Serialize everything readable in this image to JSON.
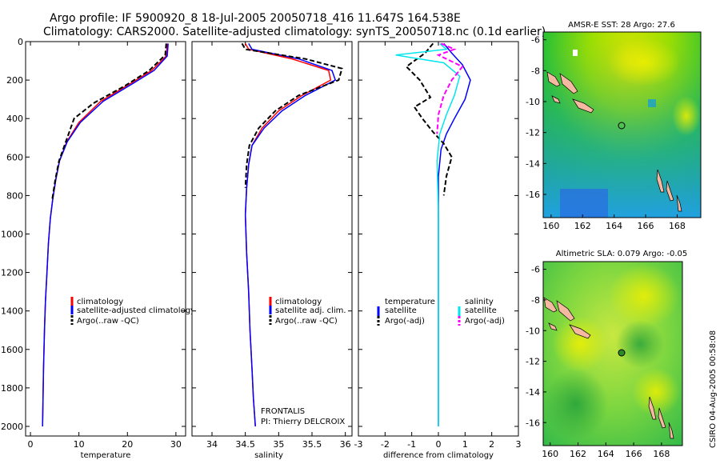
{
  "header": {
    "line1": "Argo profile: IF 5900920_8 18-Jul-2005 20050718_416 11.647S 164.538E",
    "line2": "Climatology: CARS2000. Satellite-adjusted climatology: synTS_20050718.nc (0.1d earlier)"
  },
  "credit": "CSIRO 04-Aug-2005 00:58:08",
  "colors": {
    "climatology": "#ff0000",
    "satellite": "#0000ff",
    "argo": "#000000",
    "salinity_satellite": "#00e5ee",
    "salinity_argo": "#ff00ff"
  },
  "chart_data": [
    {
      "type": "line",
      "xlabel": "temperature",
      "xlim": [
        -1,
        32
      ],
      "ylim": [
        0,
        2050
      ],
      "y_inverted": true,
      "xticks": [
        "0",
        "10",
        "20",
        "30"
      ],
      "yticks": [
        "0",
        "200",
        "400",
        "600",
        "800",
        "1000",
        "1200",
        "1400",
        "1600",
        "1800",
        "2000"
      ],
      "legend": [
        "climatology",
        "satellite-adjusted climatology",
        "Argo(..raw -QC)"
      ],
      "series": [
        {
          "name": "climatology",
          "style": "solid",
          "x": [
            28.2,
            28.0,
            25.0,
            20.5,
            14.5,
            10.0,
            7.5,
            6.0,
            5.2,
            4.6,
            4.1,
            3.7,
            3.4,
            3.1,
            2.9,
            2.7,
            2.6,
            2.5
          ],
          "y": [
            10,
            75,
            150,
            220,
            310,
            420,
            520,
            620,
            720,
            820,
            920,
            1050,
            1200,
            1350,
            1500,
            1700,
            1850,
            2000
          ]
        },
        {
          "name": "satellite-adjusted climatology",
          "style": "solid",
          "x": [
            28.4,
            28.2,
            25.5,
            21.0,
            15.0,
            10.3,
            7.6,
            6.0,
            5.2,
            4.6,
            4.1,
            3.7,
            3.4,
            3.1,
            2.9,
            2.7,
            2.6,
            2.5
          ],
          "y": [
            10,
            75,
            150,
            220,
            310,
            420,
            520,
            620,
            720,
            820,
            920,
            1050,
            1200,
            1350,
            1500,
            1700,
            1850,
            2000
          ]
        },
        {
          "name": "Argo(..raw -QC)",
          "style": "dashed",
          "x": [
            28.0,
            27.8,
            24.5,
            19.5,
            13.0,
            9.0,
            7.3,
            5.9,
            5.1,
            4.5
          ],
          "y": [
            10,
            70,
            150,
            230,
            320,
            400,
            520,
            620,
            720,
            820
          ]
        }
      ]
    },
    {
      "type": "line",
      "xlabel": "salinity",
      "xlim": [
        33.7,
        36.1
      ],
      "ylim": [
        0,
        2050
      ],
      "y_inverted": true,
      "xticks": [
        "34",
        "34.5",
        "35",
        "35.5",
        "36"
      ],
      "legend": [
        "climatology",
        "satellite adj. clim.",
        "Argo(..raw -QC)"
      ],
      "annotations": [
        "FRONTALIS",
        "PI: Thierry DELCROIX"
      ],
      "series": [
        {
          "name": "climatology",
          "style": "solid",
          "x": [
            34.5,
            34.55,
            35.2,
            35.75,
            35.78,
            35.35,
            35.0,
            34.75,
            34.6,
            34.55,
            34.52,
            34.5,
            34.52,
            34.55,
            34.57,
            34.6,
            34.62,
            34.65
          ],
          "y": [
            10,
            40,
            90,
            150,
            200,
            280,
            360,
            450,
            540,
            640,
            760,
            900,
            1100,
            1300,
            1500,
            1700,
            1850,
            2000
          ]
        },
        {
          "name": "satellite adj. clim.",
          "style": "solid",
          "x": [
            34.55,
            34.6,
            35.3,
            35.8,
            35.85,
            35.4,
            35.05,
            34.78,
            34.6,
            34.55,
            34.52,
            34.5,
            34.52,
            34.55,
            34.57,
            34.6,
            34.62,
            34.65
          ],
          "y": [
            10,
            40,
            90,
            150,
            200,
            280,
            360,
            450,
            540,
            640,
            760,
            900,
            1100,
            1300,
            1500,
            1700,
            1850,
            2000
          ]
        },
        {
          "name": "Argo(..raw -QC)",
          "style": "dashed",
          "x": [
            34.45,
            34.5,
            35.4,
            35.95,
            35.9,
            35.3,
            34.95,
            34.7,
            34.56,
            34.52,
            34.5
          ],
          "y": [
            10,
            40,
            90,
            140,
            200,
            280,
            360,
            450,
            540,
            640,
            760
          ]
        }
      ]
    },
    {
      "type": "line",
      "xlabel": "difference from climatology",
      "xlim": [
        -3,
        3
      ],
      "ylim": [
        0,
        2050
      ],
      "y_inverted": true,
      "xticks": [
        "-3",
        "-2",
        "-1",
        "0",
        "1",
        "2",
        "3"
      ],
      "legend": [
        "temperature",
        "satellite",
        "Argo(-adj)",
        "salinity",
        "satellite",
        "Argo(-adj)"
      ],
      "series": [
        {
          "name": "satellite",
          "style": "solid",
          "x": [
            0.2,
            0.5,
            0.9,
            1.2,
            1.0,
            0.6,
            0.3,
            0.1,
            0.0,
            0.0,
            0.0,
            0.0
          ],
          "y": [
            10,
            60,
            120,
            200,
            300,
            400,
            480,
            560,
            700,
            1000,
            1500,
            2000
          ]
        },
        {
          "name": "Argo(-adj)",
          "style": "dashed",
          "x": [
            -0.2,
            -0.5,
            -1.2,
            -0.7,
            -0.3,
            -0.9,
            -0.6,
            -0.2,
            0.2,
            0.5,
            0.3,
            0.2
          ],
          "y": [
            10,
            60,
            130,
            200,
            290,
            340,
            400,
            470,
            530,
            600,
            700,
            800
          ]
        },
        {
          "name": "satellite",
          "style": "solid",
          "x": [
            0.05,
            0.3,
            -1.6,
            0.2,
            0.8,
            0.6,
            0.3,
            0.05,
            -0.05,
            0.0,
            0.0,
            0.0
          ],
          "y": [
            10,
            40,
            70,
            110,
            180,
            280,
            380,
            480,
            620,
            900,
            1500,
            2000
          ]
        },
        {
          "name": "Argo(-adj)",
          "style": "dashed",
          "x": [
            0.1,
            0.6,
            0.0,
            0.9,
            0.5,
            0.2,
            0.0,
            -0.05
          ],
          "y": [
            10,
            40,
            70,
            130,
            200,
            280,
            380,
            480
          ]
        }
      ]
    },
    {
      "type": "heatmap",
      "title": "AMSR-E SST: 28 Argo: 27.6",
      "xlim": [
        159.5,
        169.5
      ],
      "ylim": [
        -17.5,
        -5.5
      ],
      "xticks": [
        "160",
        "162",
        "164",
        "166",
        "168"
      ],
      "yticks": [
        "-6",
        "-8",
        "-10",
        "-12",
        "-14",
        "-16"
      ],
      "argo_position": {
        "lon": 164.538,
        "lat": -11.647
      }
    },
    {
      "type": "heatmap",
      "title": "Altimetric SLA: 0.079 Argo: -0.05",
      "xlim": [
        159.5,
        169.5
      ],
      "ylim": [
        -17.5,
        -5.5
      ],
      "xticks": [
        "160",
        "162",
        "164",
        "166",
        "168"
      ],
      "yticks": [
        "-6",
        "-8",
        "-10",
        "-12",
        "-14",
        "-16"
      ],
      "argo_position": {
        "lon": 164.538,
        "lat": -11.647
      }
    }
  ]
}
